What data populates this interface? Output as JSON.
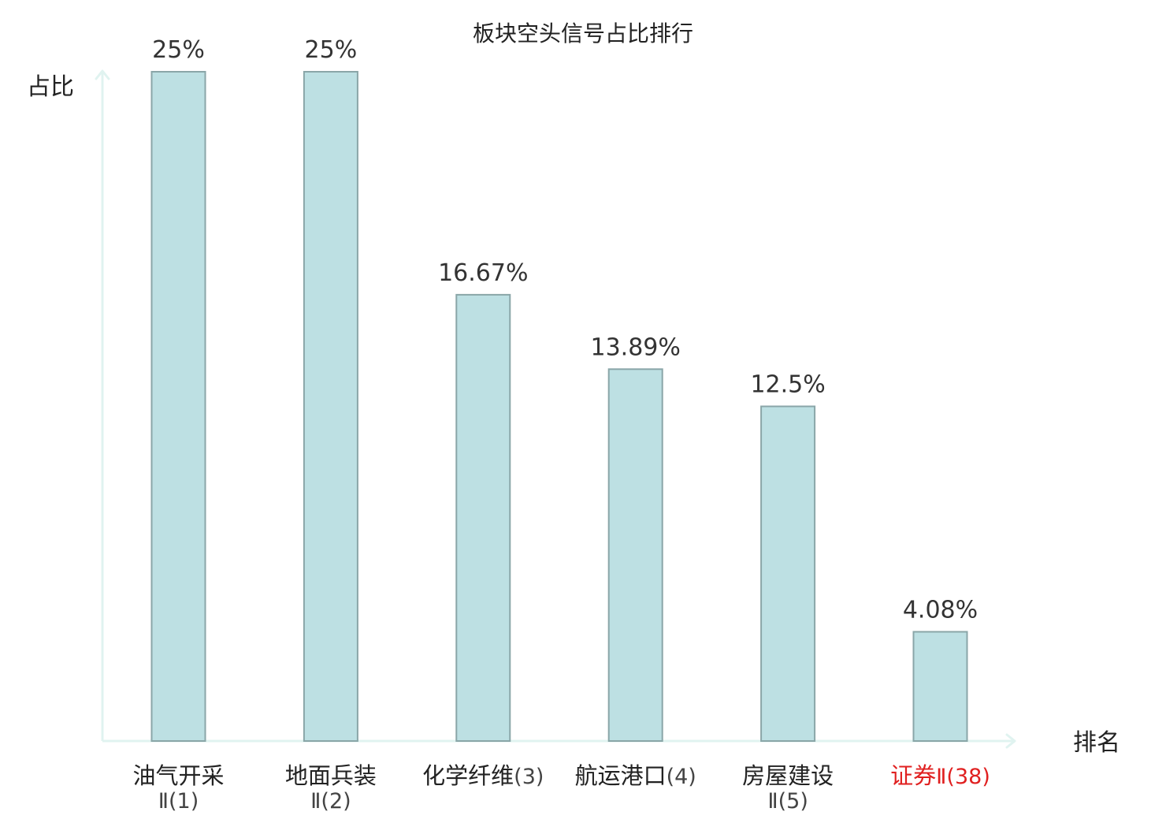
{
  "chart_data": {
    "type": "bar",
    "title": "板块空头信号占比排行",
    "ylabel": "占比",
    "xlabel": "排名",
    "ylim": [
      0,
      25
    ],
    "grid": false,
    "unit": "%",
    "categories": [
      {
        "name": "油气开采",
        "rank": "Ⅱ(1)",
        "layout": "two-line",
        "highlight": false
      },
      {
        "name": "地面兵装",
        "rank": "Ⅱ(2)",
        "layout": "two-line",
        "highlight": false
      },
      {
        "name": "化学纤维",
        "rank": "(3)",
        "layout": "one-line",
        "highlight": false
      },
      {
        "name": "航运港口",
        "rank": "(4)",
        "layout": "one-line",
        "highlight": false
      },
      {
        "name": "房屋建设",
        "rank": "Ⅱ(5)",
        "layout": "two-line",
        "highlight": false
      },
      {
        "name": "证券",
        "rank": "Ⅱ(38)",
        "layout": "one-line",
        "highlight": true
      }
    ],
    "values": [
      25,
      25,
      16.67,
      13.89,
      12.5,
      4.08
    ],
    "data_labels": [
      "25%",
      "25%",
      "16.67%",
      "13.89%",
      "12.5%",
      "4.08%"
    ],
    "colors": {
      "bar_fill": "#bde0e3",
      "bar_stroke": "#8aa6a8",
      "axis": "#e0f3f0",
      "text": "#222222",
      "label_text": "#333333",
      "rank_text": "#444444",
      "highlight": "#e02020"
    }
  }
}
